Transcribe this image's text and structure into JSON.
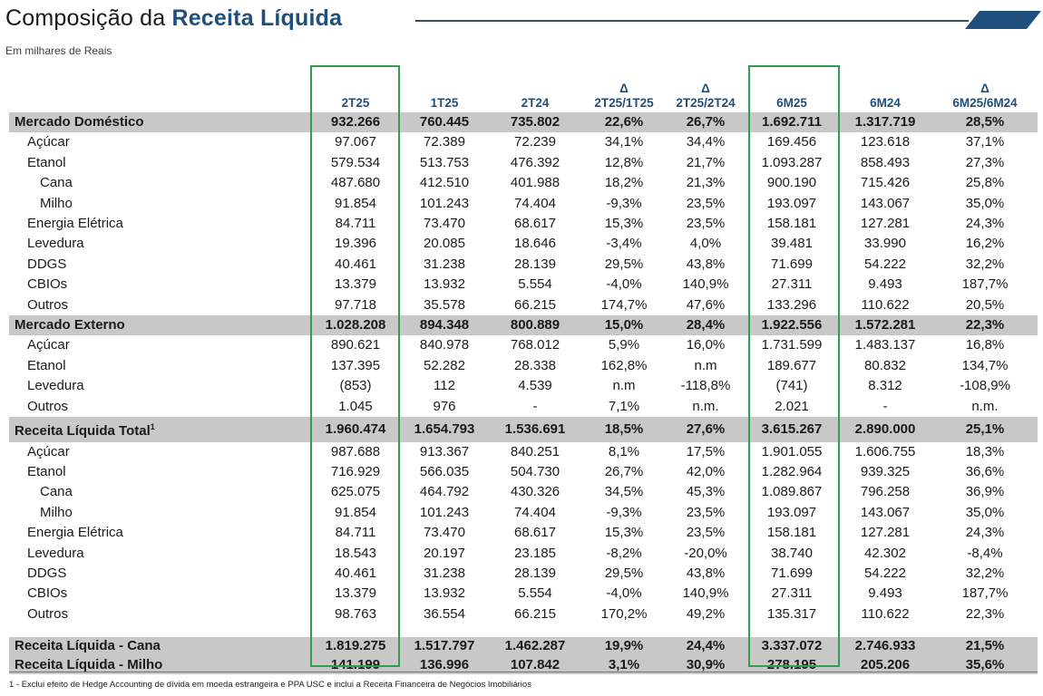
{
  "title": {
    "regular": "Composição da ",
    "bold": "Receita Líquida"
  },
  "subtitle": "Em milhares de Reais",
  "colors": {
    "accent": "#1e4f7d",
    "highlight": "#2e9e4f",
    "group_bg": "#c8c8c8"
  },
  "columns": [
    {
      "line1": "",
      "line2": "2T25"
    },
    {
      "line1": "",
      "line2": "1T25"
    },
    {
      "line1": "",
      "line2": "2T24"
    },
    {
      "line1": "Δ",
      "line2": "2T25/1T25"
    },
    {
      "line1": "Δ",
      "line2": "2T25/2T24"
    },
    {
      "line1": "",
      "line2": "6M25"
    },
    {
      "line1": "",
      "line2": "6M24"
    },
    {
      "line1": "Δ",
      "line2": "6M25/6M24"
    }
  ],
  "rows": [
    {
      "label": "Mercado Doméstico",
      "level": 0,
      "cells": [
        "932.266",
        "760.445",
        "735.802",
        "22,6%",
        "26,7%",
        "1.692.711",
        "1.317.719",
        "28,5%"
      ]
    },
    {
      "label": "Açúcar",
      "level": 1,
      "cells": [
        "97.067",
        "72.389",
        "72.239",
        "34,1%",
        "34,4%",
        "169.456",
        "123.618",
        "37,1%"
      ]
    },
    {
      "label": "Etanol",
      "level": 1,
      "cells": [
        "579.534",
        "513.753",
        "476.392",
        "12,8%",
        "21,7%",
        "1.093.287",
        "858.493",
        "27,3%"
      ]
    },
    {
      "label": "Cana",
      "level": 2,
      "cells": [
        "487.680",
        "412.510",
        "401.988",
        "18,2%",
        "21,3%",
        "900.190",
        "715.426",
        "25,8%"
      ]
    },
    {
      "label": "Milho",
      "level": 2,
      "cells": [
        "91.854",
        "101.243",
        "74.404",
        "-9,3%",
        "23,5%",
        "193.097",
        "143.067",
        "35,0%"
      ]
    },
    {
      "label": "Energia Elétrica",
      "level": 1,
      "cells": [
        "84.711",
        "73.470",
        "68.617",
        "15,3%",
        "23,5%",
        "158.181",
        "127.281",
        "24,3%"
      ]
    },
    {
      "label": "Levedura",
      "level": 1,
      "cells": [
        "19.396",
        "20.085",
        "18.646",
        "-3,4%",
        "4,0%",
        "39.481",
        "33.990",
        "16,2%"
      ]
    },
    {
      "label": "DDGS",
      "level": 1,
      "cells": [
        "40.461",
        "31.238",
        "28.139",
        "29,5%",
        "43,8%",
        "71.699",
        "54.222",
        "32,2%"
      ]
    },
    {
      "label": "CBIOs",
      "level": 1,
      "cells": [
        "13.379",
        "13.932",
        "5.554",
        "-4,0%",
        "140,9%",
        "27.311",
        "9.493",
        "187,7%"
      ]
    },
    {
      "label": "Outros",
      "level": 1,
      "cells": [
        "97.718",
        "35.578",
        "66.215",
        "174,7%",
        "47,6%",
        "133.296",
        "110.622",
        "20,5%"
      ]
    },
    {
      "label": "Mercado Externo",
      "level": 0,
      "cells": [
        "1.028.208",
        "894.348",
        "800.889",
        "15,0%",
        "28,4%",
        "1.922.556",
        "1.572.281",
        "22,3%"
      ]
    },
    {
      "label": "Açúcar",
      "level": 1,
      "cells": [
        "890.621",
        "840.978",
        "768.012",
        "5,9%",
        "16,0%",
        "1.731.599",
        "1.483.137",
        "16,8%"
      ]
    },
    {
      "label": "Etanol",
      "level": 1,
      "cells": [
        "137.395",
        "52.282",
        "28.338",
        "162,8%",
        "n.m",
        "189.677",
        "80.832",
        "134,7%"
      ]
    },
    {
      "label": "Levedura",
      "level": 1,
      "cells": [
        "(853)",
        "112",
        "4.539",
        "n.m",
        "-118,8%",
        "(741)",
        "8.312",
        "-108,9%"
      ]
    },
    {
      "label": "Outros",
      "level": 1,
      "cells": [
        "1.045",
        "976",
        "-",
        "7,1%",
        "n.m.",
        "2.021",
        "-",
        "n.m."
      ]
    },
    {
      "label": "Receita Líquida Total",
      "sup": "1",
      "level": 0,
      "cells": [
        "1.960.474",
        "1.654.793",
        "1.536.691",
        "18,5%",
        "27,6%",
        "3.615.267",
        "2.890.000",
        "25,1%"
      ]
    },
    {
      "label": "Açúcar",
      "level": 1,
      "cells": [
        "987.688",
        "913.367",
        "840.251",
        "8,1%",
        "17,5%",
        "1.901.055",
        "1.606.755",
        "18,3%"
      ]
    },
    {
      "label": "Etanol",
      "level": 1,
      "cells": [
        "716.929",
        "566.035",
        "504.730",
        "26,7%",
        "42,0%",
        "1.282.964",
        "939.325",
        "36,6%"
      ]
    },
    {
      "label": "Cana",
      "level": 2,
      "cells": [
        "625.075",
        "464.792",
        "430.326",
        "34,5%",
        "45,3%",
        "1.089.867",
        "796.258",
        "36,9%"
      ]
    },
    {
      "label": "Milho",
      "level": 2,
      "cells": [
        "91.854",
        "101.243",
        "74.404",
        "-9,3%",
        "23,5%",
        "193.097",
        "143.067",
        "35,0%"
      ]
    },
    {
      "label": "Energia Elétrica",
      "level": 1,
      "cells": [
        "84.711",
        "73.470",
        "68.617",
        "15,3%",
        "23,5%",
        "158.181",
        "127.281",
        "24,3%"
      ]
    },
    {
      "label": "Levedura",
      "level": 1,
      "cells": [
        "18.543",
        "20.197",
        "23.185",
        "-8,2%",
        "-20,0%",
        "38.740",
        "42.302",
        "-8,4%"
      ]
    },
    {
      "label": "DDGS",
      "level": 1,
      "cells": [
        "40.461",
        "31.238",
        "28.139",
        "29,5%",
        "43,8%",
        "71.699",
        "54.222",
        "32,2%"
      ]
    },
    {
      "label": "CBIOs",
      "level": 1,
      "cells": [
        "13.379",
        "13.932",
        "5.554",
        "-4,0%",
        "140,9%",
        "27.311",
        "9.493",
        "187,7%"
      ]
    },
    {
      "label": "Outros",
      "level": 1,
      "cells": [
        "98.763",
        "36.554",
        "66.215",
        "170,2%",
        "49,2%",
        "135.317",
        "110.622",
        "22,3%"
      ]
    }
  ],
  "bottom_rows": [
    {
      "label": "Receita Líquida - Cana",
      "cells": [
        "1.819.275",
        "1.517.797",
        "1.462.287",
        "19,9%",
        "24,4%",
        "3.337.072",
        "2.746.933",
        "21,5%"
      ]
    },
    {
      "label": "Receita Líquida - Milho",
      "cells": [
        "141.199",
        "136.996",
        "107.842",
        "3,1%",
        "30,9%",
        "278.195",
        "205.206",
        "35,6%"
      ]
    }
  ],
  "footnote": "1 - Exclui efeito de Hedge Accounting de dívida em moeda estrangeira e PPA USC e inclui a Receita Financeira de Negócios Imobiliários"
}
